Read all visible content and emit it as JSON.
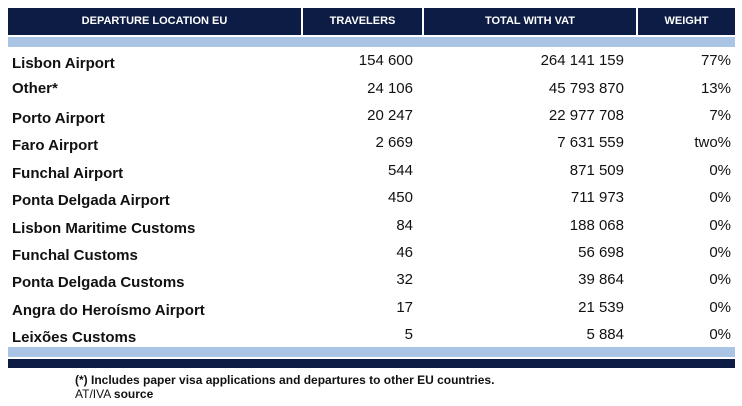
{
  "table": {
    "header": [
      "DEPARTURE LOCATION EU",
      "TRAVELERS",
      "TOTAL WITH VAT",
      "WEIGHT"
    ],
    "rows": [
      [
        "Lisbon Airport",
        "154 600",
        "264 141 159",
        "77%"
      ],
      [
        "Other*",
        "24 106",
        "45 793 870",
        "13%"
      ],
      [
        "Porto Airport",
        "20 247",
        "22 977 708",
        "7%"
      ],
      [
        "Faro Airport",
        "2 669",
        "7 631 559",
        "two%"
      ],
      [
        "Funchal Airport",
        "544",
        "871 509",
        "0%"
      ],
      [
        "Ponta Delgada Airport",
        "450",
        "711 973",
        "0%"
      ],
      [
        "Lisbon Maritime Customs",
        "84",
        "188 068",
        "0%"
      ],
      [
        "Funchal Customs",
        "46",
        "56 698",
        "0%"
      ],
      [
        "Ponta Delgada Customs",
        "32",
        "39 864",
        "0%"
      ],
      [
        "Angra do Heroísmo Airport",
        "17",
        "21 539",
        "0%"
      ],
      [
        "Leixões Customs",
        "5",
        "5 884",
        "0%"
      ]
    ]
  },
  "footnote": "(*) Includes paper visa applications and departures to other EU countries.",
  "source": {
    "prefix": "AT/IVA",
    "bold": "source"
  }
}
